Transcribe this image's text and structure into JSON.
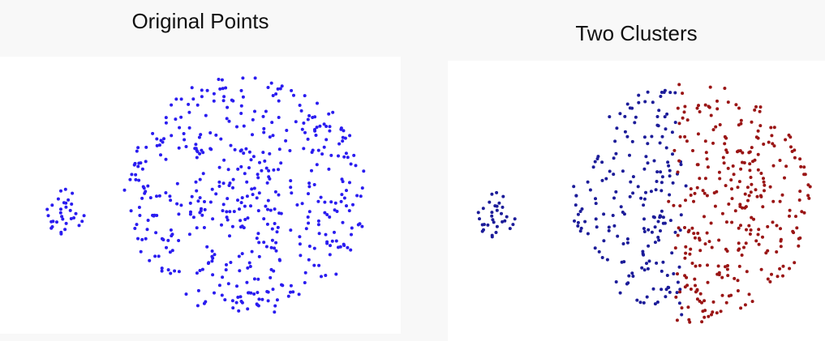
{
  "chart_data": [
    {
      "type": "scatter",
      "title": "Original Points",
      "xlabel": "",
      "ylabel": "",
      "grid": false,
      "axes_visible": false,
      "xlim": [
        -50,
        440
      ],
      "ylim": [
        -25,
        315
      ],
      "colors": {
        "points": "#2a1cf0"
      },
      "series": [
        {
          "color": "#2a1cf0",
          "clusters": [
            {
              "shape": "blob",
              "center": [
                30,
                165
              ],
              "radius": 28,
              "count": 32,
              "seed": 11
            },
            {
              "shape": "disc",
              "center": [
                250,
                145
              ],
              "radius": 148,
              "count": 480,
              "seed": 23
            }
          ]
        }
      ]
    },
    {
      "type": "scatter",
      "title": "Two Clusters",
      "xlabel": "",
      "ylabel": "",
      "grid": false,
      "axes_visible": false,
      "xlim": [
        -20,
        445
      ],
      "ylim": [
        -25,
        321
      ],
      "colors": {
        "cluster_1": "#1c1c99",
        "cluster_2": "#9a1515"
      },
      "split_x": 265,
      "series": [
        {
          "color": "#1c1c99",
          "clusters": [
            {
              "shape": "blob",
              "center": [
                40,
                165
              ],
              "radius": 28,
              "count": 32,
              "seed": 11
            },
            {
              "shape": "disc-left",
              "center": [
                280,
                150
              ],
              "radius": 148,
              "count": 190,
              "seed": 37
            }
          ]
        },
        {
          "color": "#9a1515",
          "clusters": [
            {
              "shape": "disc-right",
              "center": [
                280,
                150
              ],
              "radius": 148,
              "count": 300,
              "seed": 41
            }
          ]
        }
      ]
    }
  ]
}
